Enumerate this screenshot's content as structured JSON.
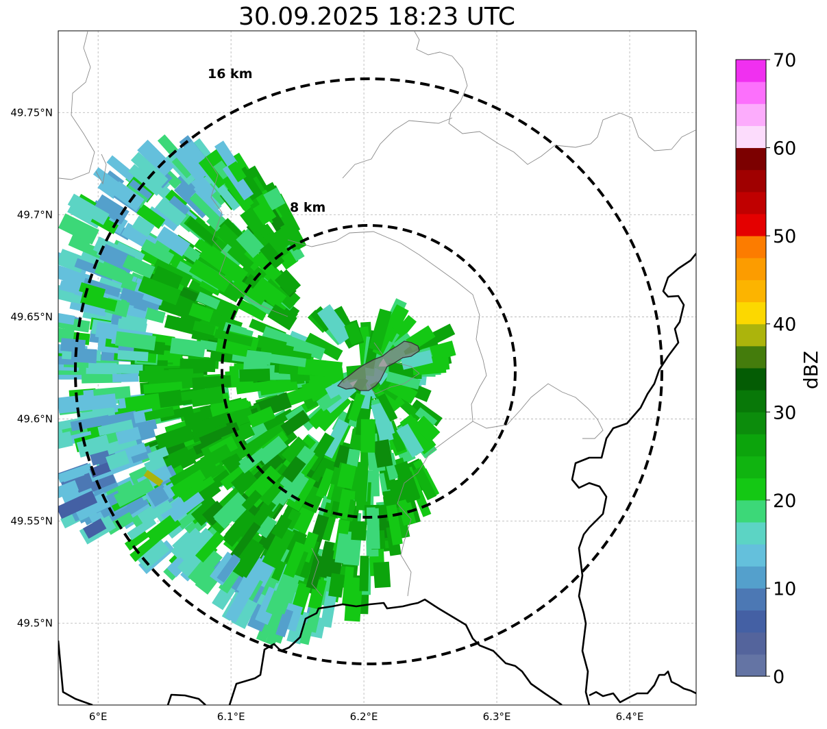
{
  "title": "30.09.2025 18:23 UTC",
  "map": {
    "lon_range": [
      5.97,
      6.45
    ],
    "lat_range": [
      49.46,
      49.79
    ],
    "lon_ticks": [
      {
        "value": 6.0,
        "label": "6°E"
      },
      {
        "value": 6.1,
        "label": "6.1°E"
      },
      {
        "value": 6.2,
        "label": "6.2°E"
      },
      {
        "value": 6.3,
        "label": "6.3°E"
      },
      {
        "value": 6.4,
        "label": "6.4°E"
      }
    ],
    "lat_ticks": [
      {
        "value": 49.5,
        "label": "49.5°N"
      },
      {
        "value": 49.55,
        "label": "49.55°N"
      },
      {
        "value": 49.6,
        "label": "49.6°N"
      },
      {
        "value": 49.65,
        "label": "49.65°N"
      },
      {
        "value": 49.7,
        "label": "49.7°N"
      },
      {
        "value": 49.75,
        "label": "49.75°N"
      }
    ],
    "range_rings": [
      {
        "label": "8 km",
        "radius_km": 8
      },
      {
        "label": "16 km",
        "radius_km": 16
      }
    ]
  },
  "colorbar": {
    "label": "dBZ",
    "min": 0,
    "max": 70,
    "ticks": [
      "0",
      "10",
      "20",
      "30",
      "40",
      "50",
      "60",
      "70"
    ],
    "colors": [
      "#6474a4",
      "#54649c",
      "#4460a4",
      "#4c78b4",
      "#54a0cc",
      "#64c0dc",
      "#5cd4c4",
      "#3cd878",
      "#14c814",
      "#10b410",
      "#0ca40c",
      "#0c8c0c",
      "#087808",
      "#045c04",
      "#447c0c",
      "#acb40c",
      "#fcd800",
      "#fcb400",
      "#fc9c00",
      "#fc7c00",
      "#e40000",
      "#c00000",
      "#a00000",
      "#7c0000",
      "#fcdcfc",
      "#fcacfc",
      "#fc70fc",
      "#f030f0"
    ]
  }
}
